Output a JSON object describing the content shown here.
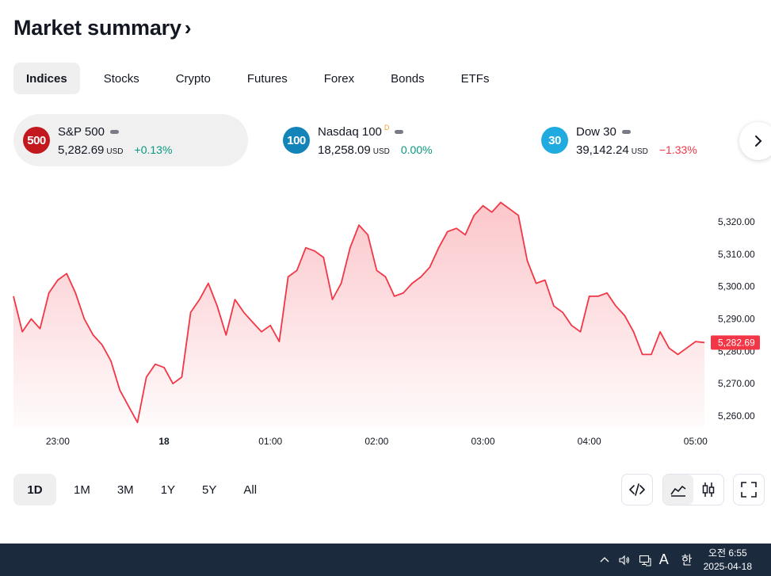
{
  "header": {
    "title": "Market summary",
    "title_chevron": "›"
  },
  "tabs": [
    "Indices",
    "Stocks",
    "Crypto",
    "Futures",
    "Forex",
    "Bonds",
    "ETFs"
  ],
  "active_tab": "Indices",
  "tickers": [
    {
      "badge": "500",
      "badge_color": "#c2181e",
      "name": "S&P 500",
      "marker": "",
      "value": "5,282.69",
      "currency": "USD",
      "change": "+0.13%",
      "change_dir": "up",
      "active": true
    },
    {
      "badge": "100",
      "badge_color": "#1384b8",
      "name": "Nasdaq 100",
      "marker": "D",
      "value": "18,258.09",
      "currency": "USD",
      "change": "0.00%",
      "change_dir": "flat",
      "active": false
    },
    {
      "badge": "30",
      "badge_color": "#1faae0",
      "name": "Dow 30",
      "marker": "",
      "value": "39,142.24",
      "currency": "USD",
      "change": "−1.33%",
      "change_dir": "down",
      "active": false
    }
  ],
  "next_icon": "chevron-right-icon",
  "chart_data": {
    "type": "area",
    "title": "",
    "series": [
      {
        "name": "",
        "color": "#f23645",
        "x": [
          "22:35",
          "22:40",
          "22:45",
          "22:50",
          "22:55",
          "23:00",
          "23:05",
          "23:10",
          "23:15",
          "23:20",
          "23:25",
          "23:30",
          "23:35",
          "23:40",
          "23:45",
          "23:50",
          "23:55",
          "00:00",
          "00:05",
          "00:10",
          "00:15",
          "00:20",
          "00:25",
          "00:30",
          "00:35",
          "00:40",
          "00:45",
          "00:50",
          "00:55",
          "01:00",
          "01:05",
          "01:10",
          "01:15",
          "01:20",
          "01:25",
          "01:30",
          "01:35",
          "01:40",
          "01:45",
          "01:50",
          "01:55",
          "02:00",
          "02:05",
          "02:10",
          "02:15",
          "02:20",
          "02:25",
          "02:30",
          "02:35",
          "02:40",
          "02:45",
          "02:50",
          "02:55",
          "03:00",
          "03:05",
          "03:10",
          "03:15",
          "03:20",
          "03:25",
          "03:30",
          "03:35",
          "03:40",
          "03:45",
          "03:50",
          "03:55",
          "04:00",
          "04:05",
          "04:10",
          "04:15",
          "04:20",
          "04:25",
          "04:30",
          "04:35",
          "04:40",
          "04:45",
          "04:50",
          "04:55",
          "05:00",
          "05:02"
        ],
        "values": [
          5297,
          5286,
          5290,
          5287,
          5298,
          5302,
          5304,
          5298,
          5290,
          5285,
          5282,
          5277,
          5268,
          5263,
          5258,
          5272,
          5276,
          5275,
          5270,
          5272,
          5292,
          5296,
          5301,
          5294,
          5285,
          5296,
          5292,
          5289,
          5286,
          5288,
          5283,
          5303,
          5305,
          5312,
          5311,
          5309,
          5296,
          5301,
          5312,
          5319,
          5316,
          5305,
          5303,
          5297,
          5298,
          5301,
          5303,
          5306,
          5312,
          5317,
          5318,
          5316,
          5322,
          5325,
          5323,
          5326,
          5324,
          5322,
          5308,
          5301,
          5302,
          5294,
          5292,
          5288,
          5286,
          5297,
          5297,
          5298,
          5294,
          5291,
          5286,
          5279,
          5279,
          5286,
          5281,
          5279,
          5281,
          5283,
          5282.69
        ]
      }
    ],
    "x_ticks": [
      "23:00",
      "18",
      "01:00",
      "02:00",
      "03:00",
      "04:00",
      "05:00"
    ],
    "x_ticks_bold": [
      "18"
    ],
    "y_ticks": [
      "5,260.00",
      "5,270.00",
      "5,280.00",
      "5,290.00",
      "5,300.00",
      "5,310.00",
      "5,320.00"
    ],
    "y_tick_values": [
      5260,
      5270,
      5280,
      5290,
      5300,
      5310,
      5320
    ],
    "ylim": [
      5257,
      5329
    ],
    "last_price_label": "5,282.69",
    "last_price": 5282.69,
    "grid": false
  },
  "range_buttons": [
    "1D",
    "1M",
    "3M",
    "1Y",
    "5Y",
    "All"
  ],
  "active_range": "1D",
  "tool_icons": [
    "embed-code-icon",
    "area-chart-icon",
    "candlestick-icon",
    "fullscreen-icon"
  ],
  "taskbar": {
    "ime_mode": "A",
    "ime_lang": "한",
    "time": "오전 6:55",
    "date": "2025-04-18"
  }
}
